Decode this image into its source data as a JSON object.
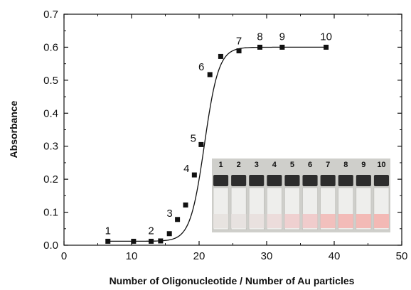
{
  "chart_data": {
    "type": "scatter",
    "title": "",
    "xlabel": "Number of Oligonucleotide / Number of Au particles",
    "ylabel": "Absorbance",
    "xlim": [
      0,
      50
    ],
    "ylim": [
      0,
      0.7
    ],
    "x_ticks": [
      0,
      10,
      20,
      30,
      40,
      50
    ],
    "y_ticks": [
      0.0,
      0.1,
      0.2,
      0.3,
      0.4,
      0.5,
      0.6,
      0.7
    ],
    "x_tick_labels": [
      "0",
      "10",
      "20",
      "30",
      "40",
      "50"
    ],
    "y_tick_labels": [
      "0.0",
      "0.1",
      "0.2",
      "0.3",
      "0.4",
      "0.5",
      "0.6",
      "0.7"
    ],
    "grid": false,
    "marker": "square",
    "fit_curve": "sigmoid",
    "series": [
      {
        "x": [
          6.5,
          10.3,
          12.9,
          14.3,
          15.6,
          16.8,
          18.0,
          19.3,
          20.3,
          21.6,
          23.2,
          25.9,
          29.0,
          32.3,
          38.8
        ],
        "y": [
          0.012,
          0.012,
          0.012,
          0.013,
          0.035,
          0.078,
          0.122,
          0.213,
          0.305,
          0.517,
          0.572,
          0.589,
          0.6,
          0.6,
          0.6
        ]
      }
    ],
    "point_labels": [
      {
        "text": "1",
        "x": 6.5,
        "y": 0.012
      },
      {
        "text": "2",
        "x": 12.9,
        "y": 0.012
      },
      {
        "text": "3",
        "x": 16.8,
        "y": 0.078
      },
      {
        "text": "4",
        "x": 19.3,
        "y": 0.213
      },
      {
        "text": "5",
        "x": 20.3,
        "y": 0.305
      },
      {
        "text": "6",
        "x": 21.6,
        "y": 0.517
      },
      {
        "text": "7",
        "x": 25.9,
        "y": 0.589
      },
      {
        "text": "8",
        "x": 29.0,
        "y": 0.6
      },
      {
        "text": "9",
        "x": 32.3,
        "y": 0.6
      },
      {
        "text": "10",
        "x": 38.8,
        "y": 0.6
      }
    ],
    "inset": {
      "content": "photo of vials",
      "labels": [
        "1",
        "2",
        "3",
        "4",
        "5",
        "6",
        "7",
        "8",
        "9",
        "10"
      ],
      "solution_colors": [
        "#e7e3e0",
        "#e7e2e0",
        "#e9e1df",
        "#ecdcdb",
        "#efd0d0",
        "#f0cccc",
        "#f2c0bd",
        "#f3bbb8",
        "#f3bab6",
        "#f3b9b5"
      ]
    }
  }
}
